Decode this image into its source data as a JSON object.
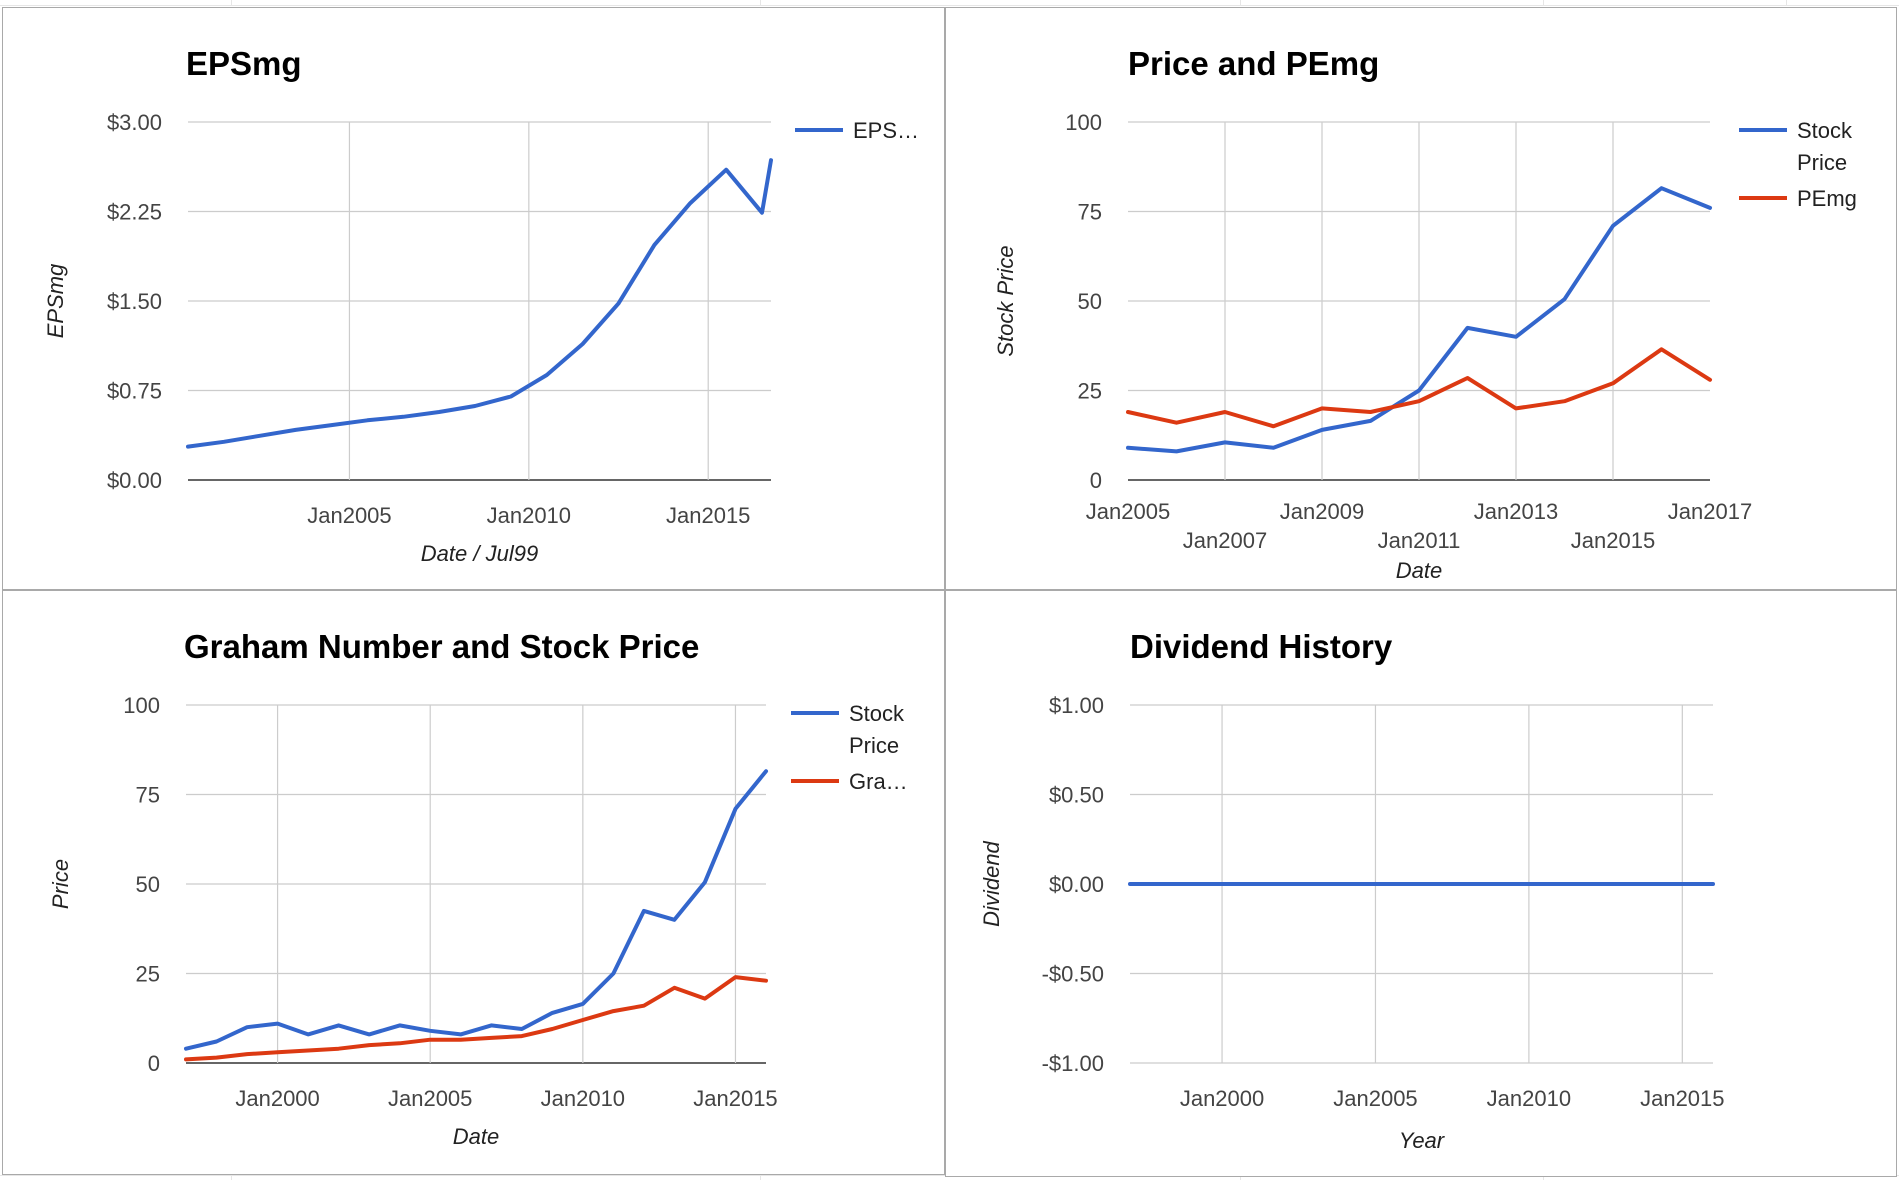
{
  "colors": {
    "blue": "#3366cc",
    "red": "#dc3912",
    "grid": "#cccccc",
    "baseline": "#333333"
  },
  "chart_data": [
    {
      "id": "epsmg",
      "type": "line",
      "title": "EPSmg",
      "xlabel": "Date / Jul99",
      "ylabel": "EPSmg",
      "xlim": [
        2000.5,
        2016.75
      ],
      "ylim": [
        0,
        3
      ],
      "yticks": [
        0,
        0.75,
        1.5,
        2.25,
        3
      ],
      "ytick_labels": [
        "$0.00",
        "$0.75",
        "$1.50",
        "$2.25",
        "$3.00"
      ],
      "xticks": [
        {
          "x": 2005,
          "label": "Jan2005"
        },
        {
          "x": 2010,
          "label": "Jan2010"
        },
        {
          "x": 2015,
          "label": "Jan2015"
        }
      ],
      "grid": true,
      "legend": "right",
      "series": [
        {
          "name": "EPS…",
          "color": "#3366cc",
          "x": [
            2000.5,
            2001.5,
            2002.5,
            2003.5,
            2004.5,
            2005.5,
            2006.5,
            2007.5,
            2008.5,
            2009.5,
            2010.5,
            2011.5,
            2012.5,
            2013.5,
            2014.5,
            2015.5,
            2016.5,
            2016.75
          ],
          "values": [
            0.28,
            0.32,
            0.37,
            0.42,
            0.46,
            0.5,
            0.53,
            0.57,
            0.62,
            0.7,
            0.88,
            1.14,
            1.48,
            1.97,
            2.32,
            2.6,
            2.24,
            2.68
          ]
        }
      ]
    },
    {
      "id": "price-pemg",
      "type": "line",
      "title": "Price and PEmg",
      "xlabel": "Date",
      "ylabel": "Stock Price",
      "xlim": [
        2005,
        2017
      ],
      "ylim": [
        0,
        100
      ],
      "yticks": [
        0,
        25,
        50,
        75,
        100
      ],
      "ytick_labels": [
        "0",
        "25",
        "50",
        "75",
        "100"
      ],
      "xticks": [
        {
          "x": 2005,
          "label": "Jan2005",
          "row": 0
        },
        {
          "x": 2007,
          "label": "Jan2007",
          "row": 1
        },
        {
          "x": 2009,
          "label": "Jan2009",
          "row": 0
        },
        {
          "x": 2011,
          "label": "Jan2011",
          "row": 1
        },
        {
          "x": 2013,
          "label": "Jan2013",
          "row": 0
        },
        {
          "x": 2015,
          "label": "Jan2015",
          "row": 1
        },
        {
          "x": 2017,
          "label": "Jan2017",
          "row": 0
        }
      ],
      "grid": true,
      "legend": "right",
      "series": [
        {
          "name": [
            "Stock",
            "Price"
          ],
          "color": "#3366cc",
          "x": [
            2005,
            2006,
            2007,
            2008,
            2009,
            2010,
            2011,
            2012,
            2013,
            2014,
            2015,
            2016,
            2017
          ],
          "values": [
            9,
            8,
            10.5,
            9,
            14,
            16.5,
            25,
            42.5,
            40,
            50.5,
            71,
            81.5,
            76
          ]
        },
        {
          "name": [
            "PEmg"
          ],
          "color": "#dc3912",
          "x": [
            2005,
            2006,
            2007,
            2008,
            2009,
            2010,
            2011,
            2012,
            2013,
            2014,
            2015,
            2016,
            2017
          ],
          "values": [
            19,
            16,
            19,
            15,
            20,
            19,
            22,
            28.5,
            20,
            22,
            27,
            36.5,
            28
          ]
        }
      ]
    },
    {
      "id": "graham",
      "type": "line",
      "title": "Graham Number and Stock Price",
      "xlabel": "Date",
      "ylabel": "Price",
      "xlim": [
        1997,
        2016
      ],
      "ylim": [
        0,
        100
      ],
      "yticks": [
        0,
        25,
        50,
        75,
        100
      ],
      "ytick_labels": [
        "0",
        "25",
        "50",
        "75",
        "100"
      ],
      "xticks": [
        {
          "x": 2000,
          "label": "Jan2000"
        },
        {
          "x": 2005,
          "label": "Jan2005"
        },
        {
          "x": 2010,
          "label": "Jan2010"
        },
        {
          "x": 2015,
          "label": "Jan2015"
        }
      ],
      "grid": true,
      "legend": "right",
      "series": [
        {
          "name": [
            "Stock",
            "Price"
          ],
          "color": "#3366cc",
          "x": [
            1997,
            1998,
            1999,
            2000,
            2001,
            2002,
            2003,
            2004,
            2005,
            2006,
            2007,
            2008,
            2009,
            2010,
            2011,
            2012,
            2013,
            2014,
            2015,
            2016
          ],
          "values": [
            4,
            6,
            10,
            11,
            8,
            10.5,
            8,
            10.5,
            9,
            8,
            10.5,
            9.5,
            14,
            16.5,
            25,
            42.5,
            40,
            50.5,
            71,
            81.5
          ]
        },
        {
          "name": [
            "Gra…"
          ],
          "color": "#dc3912",
          "x": [
            1997,
            1998,
            1999,
            2000,
            2001,
            2002,
            2003,
            2004,
            2005,
            2006,
            2007,
            2008,
            2009,
            2010,
            2011,
            2012,
            2013,
            2014,
            2015,
            2016
          ],
          "values": [
            1,
            1.5,
            2.5,
            3,
            3.5,
            4,
            5,
            5.5,
            6.5,
            6.5,
            7,
            7.5,
            9.5,
            12,
            14.5,
            16,
            21,
            18,
            24,
            23
          ]
        }
      ]
    },
    {
      "id": "dividend",
      "type": "line",
      "title": "Dividend History",
      "xlabel": "Year",
      "ylabel": "Dividend",
      "xlim": [
        1997,
        2016
      ],
      "ylim": [
        -1,
        1
      ],
      "yticks": [
        -1,
        -0.5,
        0,
        0.5,
        1
      ],
      "ytick_labels": [
        "-$1.00",
        "-$0.50",
        "$0.00",
        "$0.50",
        "$1.00"
      ],
      "xticks": [
        {
          "x": 2000,
          "label": "Jan2000"
        },
        {
          "x": 2005,
          "label": "Jan2005"
        },
        {
          "x": 2010,
          "label": "Jan2010"
        },
        {
          "x": 2015,
          "label": "Jan2015"
        }
      ],
      "grid": true,
      "legend": "none",
      "series": [
        {
          "name": "",
          "color": "#3366cc",
          "x": [
            1997,
            2016
          ],
          "values": [
            0,
            0
          ]
        }
      ]
    }
  ]
}
